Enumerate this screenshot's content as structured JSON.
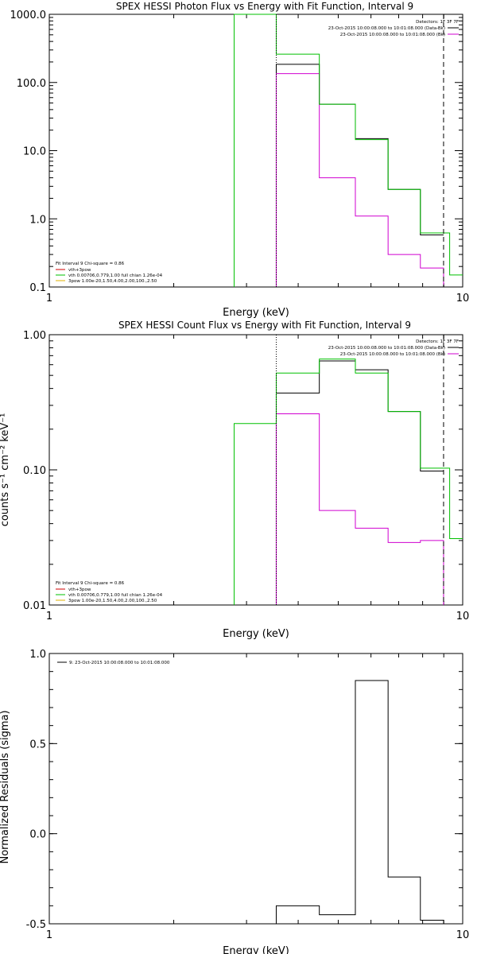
{
  "chart_data": [
    {
      "type": "line",
      "title": "SPEX HESSI Photon Flux vs Energy with Fit Function, Interval 9",
      "xlabel": "Energy (keV)",
      "ylabel": "",
      "x_scale": "log",
      "y_scale": "log",
      "xlim": [
        1,
        10
      ],
      "ylim": [
        0.1,
        1000
      ],
      "x_ticks": [
        "1",
        "10"
      ],
      "y_ticks": [
        "1000.0",
        "100.0",
        "10.0",
        "1.0",
        "0.1"
      ],
      "y_tick_values": [
        1000,
        100,
        10,
        1,
        0.1
      ],
      "vlines": [
        {
          "x": 3.54,
          "style": "dotted",
          "color": "#000000"
        },
        {
          "x": 8.99,
          "style": "dashed",
          "color": "#000000"
        }
      ],
      "legend_top_right": [
        "Detectors: 1F 3F 7F",
        "23-Oct-2015 10:00:08.000 to 10:01:08.000 (Data-Bk)",
        "23-Oct-2015 10:00:08.000 to 10:01:08.000 (Bk)"
      ],
      "legend_top_colors": [
        "#000000",
        "#d000d0"
      ],
      "legend_bottom_left": [
        "Fit Interval 9   Chi-square = 0.86",
        "vth+3pow",
        "vth 0.00706,0.779,1.00  full chian 1.26e-04",
        "3pow 1.00e-20,1.50,4.00,2.00,100.,2.50"
      ],
      "legend_bottom_colors": [
        "#d00000",
        "#00c000",
        "#e0b000"
      ],
      "series": [
        {
          "name": "23-Oct-2015 10:00:08.000 to 10:01:08.000 (Data-Bk)",
          "color": "#000000",
          "edges": [
            3.54,
            4.5,
            5.5,
            6.6,
            7.9,
            8.99
          ],
          "values": [
            185,
            48,
            15,
            2.7,
            0.58
          ]
        },
        {
          "name": "23-Oct-2015 10:00:08.000 to 10:01:08.000 (Bk)",
          "color": "#d000d0",
          "edges": [
            3.54,
            4.5,
            5.5,
            6.6,
            7.9,
            8.99
          ],
          "values": [
            135,
            4.0,
            1.1,
            0.3,
            0.19
          ],
          "drop_to_axis": true
        },
        {
          "name": "vth+3pow",
          "color": "#00c000",
          "edges": [
            2.8,
            3.54,
            4.5,
            5.5,
            6.6,
            7.9,
            9.3,
            10
          ],
          "values": [
            1500,
            260,
            48,
            14.5,
            2.7,
            0.62,
            0.15
          ]
        }
      ]
    },
    {
      "type": "line",
      "title": "SPEX HESSI Count Flux vs Energy with Fit Function, Interval 9",
      "xlabel": "Energy (keV)",
      "ylabel": "counts s⁻¹ cm⁻² keV⁻¹",
      "x_scale": "log",
      "y_scale": "log",
      "xlim": [
        1,
        10
      ],
      "ylim": [
        0.01,
        1.0
      ],
      "x_ticks": [
        "1",
        "10"
      ],
      "y_ticks": [
        "1.00",
        "0.10",
        "0.01"
      ],
      "y_tick_values": [
        1.0,
        0.1,
        0.01
      ],
      "vlines": [
        {
          "x": 3.54,
          "style": "dotted",
          "color": "#000000"
        },
        {
          "x": 8.99,
          "style": "dashed",
          "color": "#000000"
        }
      ],
      "legend_top_right": [
        "Detectors: 1F 3F 7F",
        "23-Oct-2015 10:00:08.000 to 10:01:08.000 (Data-Bk)",
        "23-Oct-2015 10:00:08.000 to 10:01:08.000 (Bk)"
      ],
      "legend_top_colors": [
        "#000000",
        "#d000d0"
      ],
      "legend_bottom_left": [
        "Fit Interval 9   Chi-square = 0.86",
        "vth+3pow",
        "vth 0.00706,0.779,1.00  full chian 1.26e-04",
        "3pow 1.00e-20,1.50,4.00,2.00,100.,2.50"
      ],
      "legend_bottom_colors": [
        "#d00000",
        "#00c000",
        "#e0b000"
      ],
      "series": [
        {
          "name": "23-Oct-2015 10:00:08.000 to 10:01:08.000 (Data-Bk)",
          "color": "#000000",
          "edges": [
            3.54,
            4.5,
            5.5,
            6.6,
            7.9,
            8.99
          ],
          "values": [
            0.37,
            0.64,
            0.55,
            0.27,
            0.098
          ]
        },
        {
          "name": "23-Oct-2015 10:00:08.000 to 10:01:08.000 (Bk)",
          "color": "#d000d0",
          "edges": [
            3.54,
            4.5,
            5.5,
            6.6,
            7.9,
            8.99
          ],
          "values": [
            0.26,
            0.05,
            0.037,
            0.029,
            0.03
          ],
          "drop_to_axis": true
        },
        {
          "name": "vth+3pow",
          "color": "#00c000",
          "edges": [
            2.8,
            3.54,
            4.5,
            5.5,
            6.6,
            7.9,
            9.3,
            10
          ],
          "values": [
            0.22,
            0.52,
            0.66,
            0.52,
            0.27,
            0.103,
            0.031
          ]
        }
      ]
    },
    {
      "type": "line",
      "title": "",
      "xlabel": "Energy (keV)",
      "ylabel": "Normalized Residuals (sigma)",
      "x_scale": "log",
      "y_scale": "linear",
      "xlim": [
        1,
        10
      ],
      "ylim": [
        -0.5,
        1.0
      ],
      "x_ticks": [
        "1",
        "10"
      ],
      "y_ticks": [
        "1.0",
        "0.5",
        "0.0",
        "-0.5"
      ],
      "y_tick_values": [
        1.0,
        0.5,
        0.0,
        -0.5
      ],
      "vlines": [],
      "legend_top_left": [
        "9: 23-Oct-2015 10:00:08.000 to 10:01:08.000"
      ],
      "legend_top_colors": [
        "#000000"
      ],
      "series": [
        {
          "name": "9: 23-Oct-2015 10:00:08.000 to 10:01:08.000",
          "color": "#000000",
          "edges": [
            3.54,
            4.5,
            5.5,
            6.6,
            7.9,
            8.99
          ],
          "values": [
            -0.4,
            -0.45,
            0.85,
            -0.24,
            -0.48
          ],
          "drop_to_axis": true
        }
      ]
    }
  ]
}
